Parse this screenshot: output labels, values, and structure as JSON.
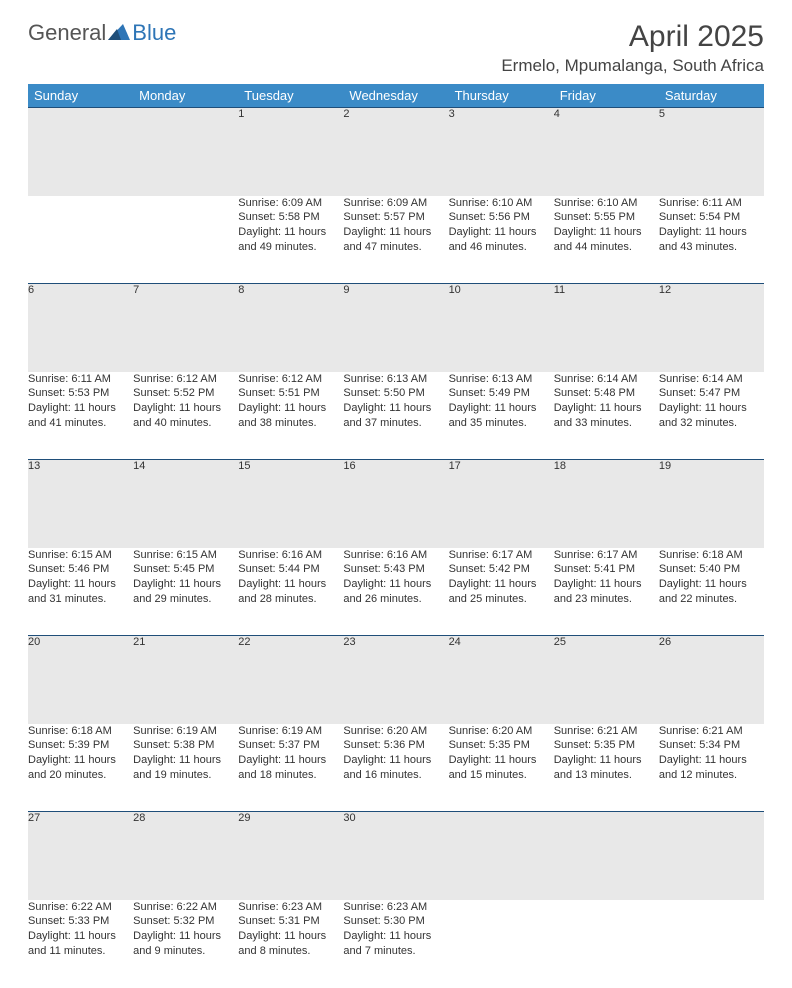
{
  "logo": {
    "general": "General",
    "blue": "Blue"
  },
  "title": "April 2025",
  "location": "Ermelo, Mpumalanga, South Africa",
  "colors": {
    "header_bg": "#3b8bc7",
    "header_text": "#ffffff",
    "daynum_bg": "#e8e8e8",
    "daynum_text": "#555555",
    "border_top": "#1f4e79",
    "body_text": "#333333",
    "logo_general": "#555555",
    "logo_blue": "#2e75b6",
    "title_color": "#444444"
  },
  "weekdays": [
    "Sunday",
    "Monday",
    "Tuesday",
    "Wednesday",
    "Thursday",
    "Friday",
    "Saturday"
  ],
  "weeks": [
    [
      null,
      null,
      {
        "n": "1",
        "sr": "6:09 AM",
        "ss": "5:58 PM",
        "dl": "11 hours and 49 minutes."
      },
      {
        "n": "2",
        "sr": "6:09 AM",
        "ss": "5:57 PM",
        "dl": "11 hours and 47 minutes."
      },
      {
        "n": "3",
        "sr": "6:10 AM",
        "ss": "5:56 PM",
        "dl": "11 hours and 46 minutes."
      },
      {
        "n": "4",
        "sr": "6:10 AM",
        "ss": "5:55 PM",
        "dl": "11 hours and 44 minutes."
      },
      {
        "n": "5",
        "sr": "6:11 AM",
        "ss": "5:54 PM",
        "dl": "11 hours and 43 minutes."
      }
    ],
    [
      {
        "n": "6",
        "sr": "6:11 AM",
        "ss": "5:53 PM",
        "dl": "11 hours and 41 minutes."
      },
      {
        "n": "7",
        "sr": "6:12 AM",
        "ss": "5:52 PM",
        "dl": "11 hours and 40 minutes."
      },
      {
        "n": "8",
        "sr": "6:12 AM",
        "ss": "5:51 PM",
        "dl": "11 hours and 38 minutes."
      },
      {
        "n": "9",
        "sr": "6:13 AM",
        "ss": "5:50 PM",
        "dl": "11 hours and 37 minutes."
      },
      {
        "n": "10",
        "sr": "6:13 AM",
        "ss": "5:49 PM",
        "dl": "11 hours and 35 minutes."
      },
      {
        "n": "11",
        "sr": "6:14 AM",
        "ss": "5:48 PM",
        "dl": "11 hours and 33 minutes."
      },
      {
        "n": "12",
        "sr": "6:14 AM",
        "ss": "5:47 PM",
        "dl": "11 hours and 32 minutes."
      }
    ],
    [
      {
        "n": "13",
        "sr": "6:15 AM",
        "ss": "5:46 PM",
        "dl": "11 hours and 31 minutes."
      },
      {
        "n": "14",
        "sr": "6:15 AM",
        "ss": "5:45 PM",
        "dl": "11 hours and 29 minutes."
      },
      {
        "n": "15",
        "sr": "6:16 AM",
        "ss": "5:44 PM",
        "dl": "11 hours and 28 minutes."
      },
      {
        "n": "16",
        "sr": "6:16 AM",
        "ss": "5:43 PM",
        "dl": "11 hours and 26 minutes."
      },
      {
        "n": "17",
        "sr": "6:17 AM",
        "ss": "5:42 PM",
        "dl": "11 hours and 25 minutes."
      },
      {
        "n": "18",
        "sr": "6:17 AM",
        "ss": "5:41 PM",
        "dl": "11 hours and 23 minutes."
      },
      {
        "n": "19",
        "sr": "6:18 AM",
        "ss": "5:40 PM",
        "dl": "11 hours and 22 minutes."
      }
    ],
    [
      {
        "n": "20",
        "sr": "6:18 AM",
        "ss": "5:39 PM",
        "dl": "11 hours and 20 minutes."
      },
      {
        "n": "21",
        "sr": "6:19 AM",
        "ss": "5:38 PM",
        "dl": "11 hours and 19 minutes."
      },
      {
        "n": "22",
        "sr": "6:19 AM",
        "ss": "5:37 PM",
        "dl": "11 hours and 18 minutes."
      },
      {
        "n": "23",
        "sr": "6:20 AM",
        "ss": "5:36 PM",
        "dl": "11 hours and 16 minutes."
      },
      {
        "n": "24",
        "sr": "6:20 AM",
        "ss": "5:35 PM",
        "dl": "11 hours and 15 minutes."
      },
      {
        "n": "25",
        "sr": "6:21 AM",
        "ss": "5:35 PM",
        "dl": "11 hours and 13 minutes."
      },
      {
        "n": "26",
        "sr": "6:21 AM",
        "ss": "5:34 PM",
        "dl": "11 hours and 12 minutes."
      }
    ],
    [
      {
        "n": "27",
        "sr": "6:22 AM",
        "ss": "5:33 PM",
        "dl": "11 hours and 11 minutes."
      },
      {
        "n": "28",
        "sr": "6:22 AM",
        "ss": "5:32 PM",
        "dl": "11 hours and 9 minutes."
      },
      {
        "n": "29",
        "sr": "6:23 AM",
        "ss": "5:31 PM",
        "dl": "11 hours and 8 minutes."
      },
      {
        "n": "30",
        "sr": "6:23 AM",
        "ss": "5:30 PM",
        "dl": "11 hours and 7 minutes."
      },
      null,
      null,
      null
    ]
  ],
  "labels": {
    "sunrise": "Sunrise:",
    "sunset": "Sunset:",
    "daylight": "Daylight:"
  }
}
